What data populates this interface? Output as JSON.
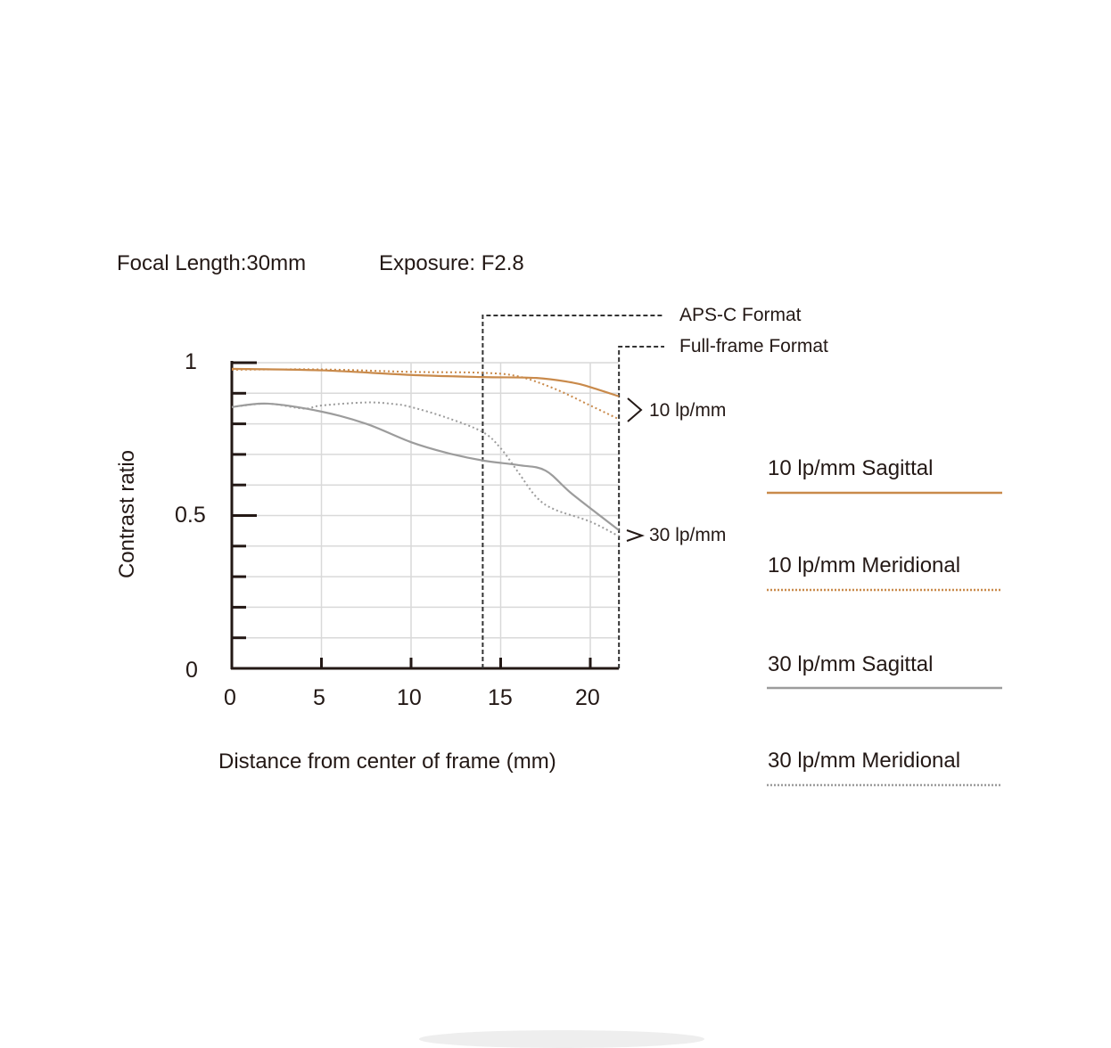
{
  "header": {
    "focal_length": "Focal Length:30mm",
    "exposure": "Exposure: F2.8"
  },
  "chart_data": {
    "type": "line",
    "xlabel": "Distance from center of frame (mm)",
    "ylabel": "Contrast ratio",
    "xlim": [
      0,
      21.6
    ],
    "ylim": [
      0,
      1
    ],
    "x_ticks": [
      "0",
      "5",
      "10",
      "15",
      "20"
    ],
    "y_ticks": [
      "0",
      "0.5",
      "1"
    ],
    "grid": true,
    "format_markers": [
      {
        "label": "APS-C Format",
        "x": 14
      },
      {
        "label": "Full-frame Format",
        "x": 21.6
      }
    ],
    "annotations": [
      "10 lp/mm",
      "30 lp/mm"
    ],
    "legend_position": "right",
    "series": [
      {
        "name": "10 lp/mm Sagittal",
        "color": "#c98a4b",
        "style": "solid",
        "x": [
          0,
          5,
          10,
          14,
          17,
          19,
          20,
          21.6
        ],
        "y": [
          0.98,
          0.975,
          0.96,
          0.953,
          0.95,
          0.935,
          0.92,
          0.89
        ]
      },
      {
        "name": "10 lp/mm Meridional",
        "color": "#c98a4b",
        "style": "dotted",
        "x": [
          0,
          5,
          10,
          14,
          16,
          18,
          20,
          21.6
        ],
        "y": [
          0.977,
          0.978,
          0.97,
          0.967,
          0.955,
          0.915,
          0.86,
          0.815
        ]
      },
      {
        "name": "30 lp/mm Sagittal",
        "color": "#9c9c9c",
        "style": "solid",
        "x": [
          0,
          2,
          5,
          7.5,
          10,
          12,
          14,
          16,
          17.5,
          19,
          21.6
        ],
        "y": [
          0.855,
          0.866,
          0.84,
          0.8,
          0.74,
          0.705,
          0.68,
          0.665,
          0.647,
          0.57,
          0.452
        ]
      },
      {
        "name": "30 lp/mm Meridional",
        "color": "#9c9c9c",
        "style": "dotted",
        "x": [
          0,
          2,
          4,
          5,
          7.5,
          9,
          10,
          12,
          14,
          15,
          16,
          17,
          18,
          20,
          21.6
        ],
        "y": [
          0.855,
          0.866,
          0.85,
          0.86,
          0.87,
          0.865,
          0.855,
          0.82,
          0.773,
          0.72,
          0.64,
          0.56,
          0.52,
          0.48,
          0.432
        ]
      }
    ]
  }
}
